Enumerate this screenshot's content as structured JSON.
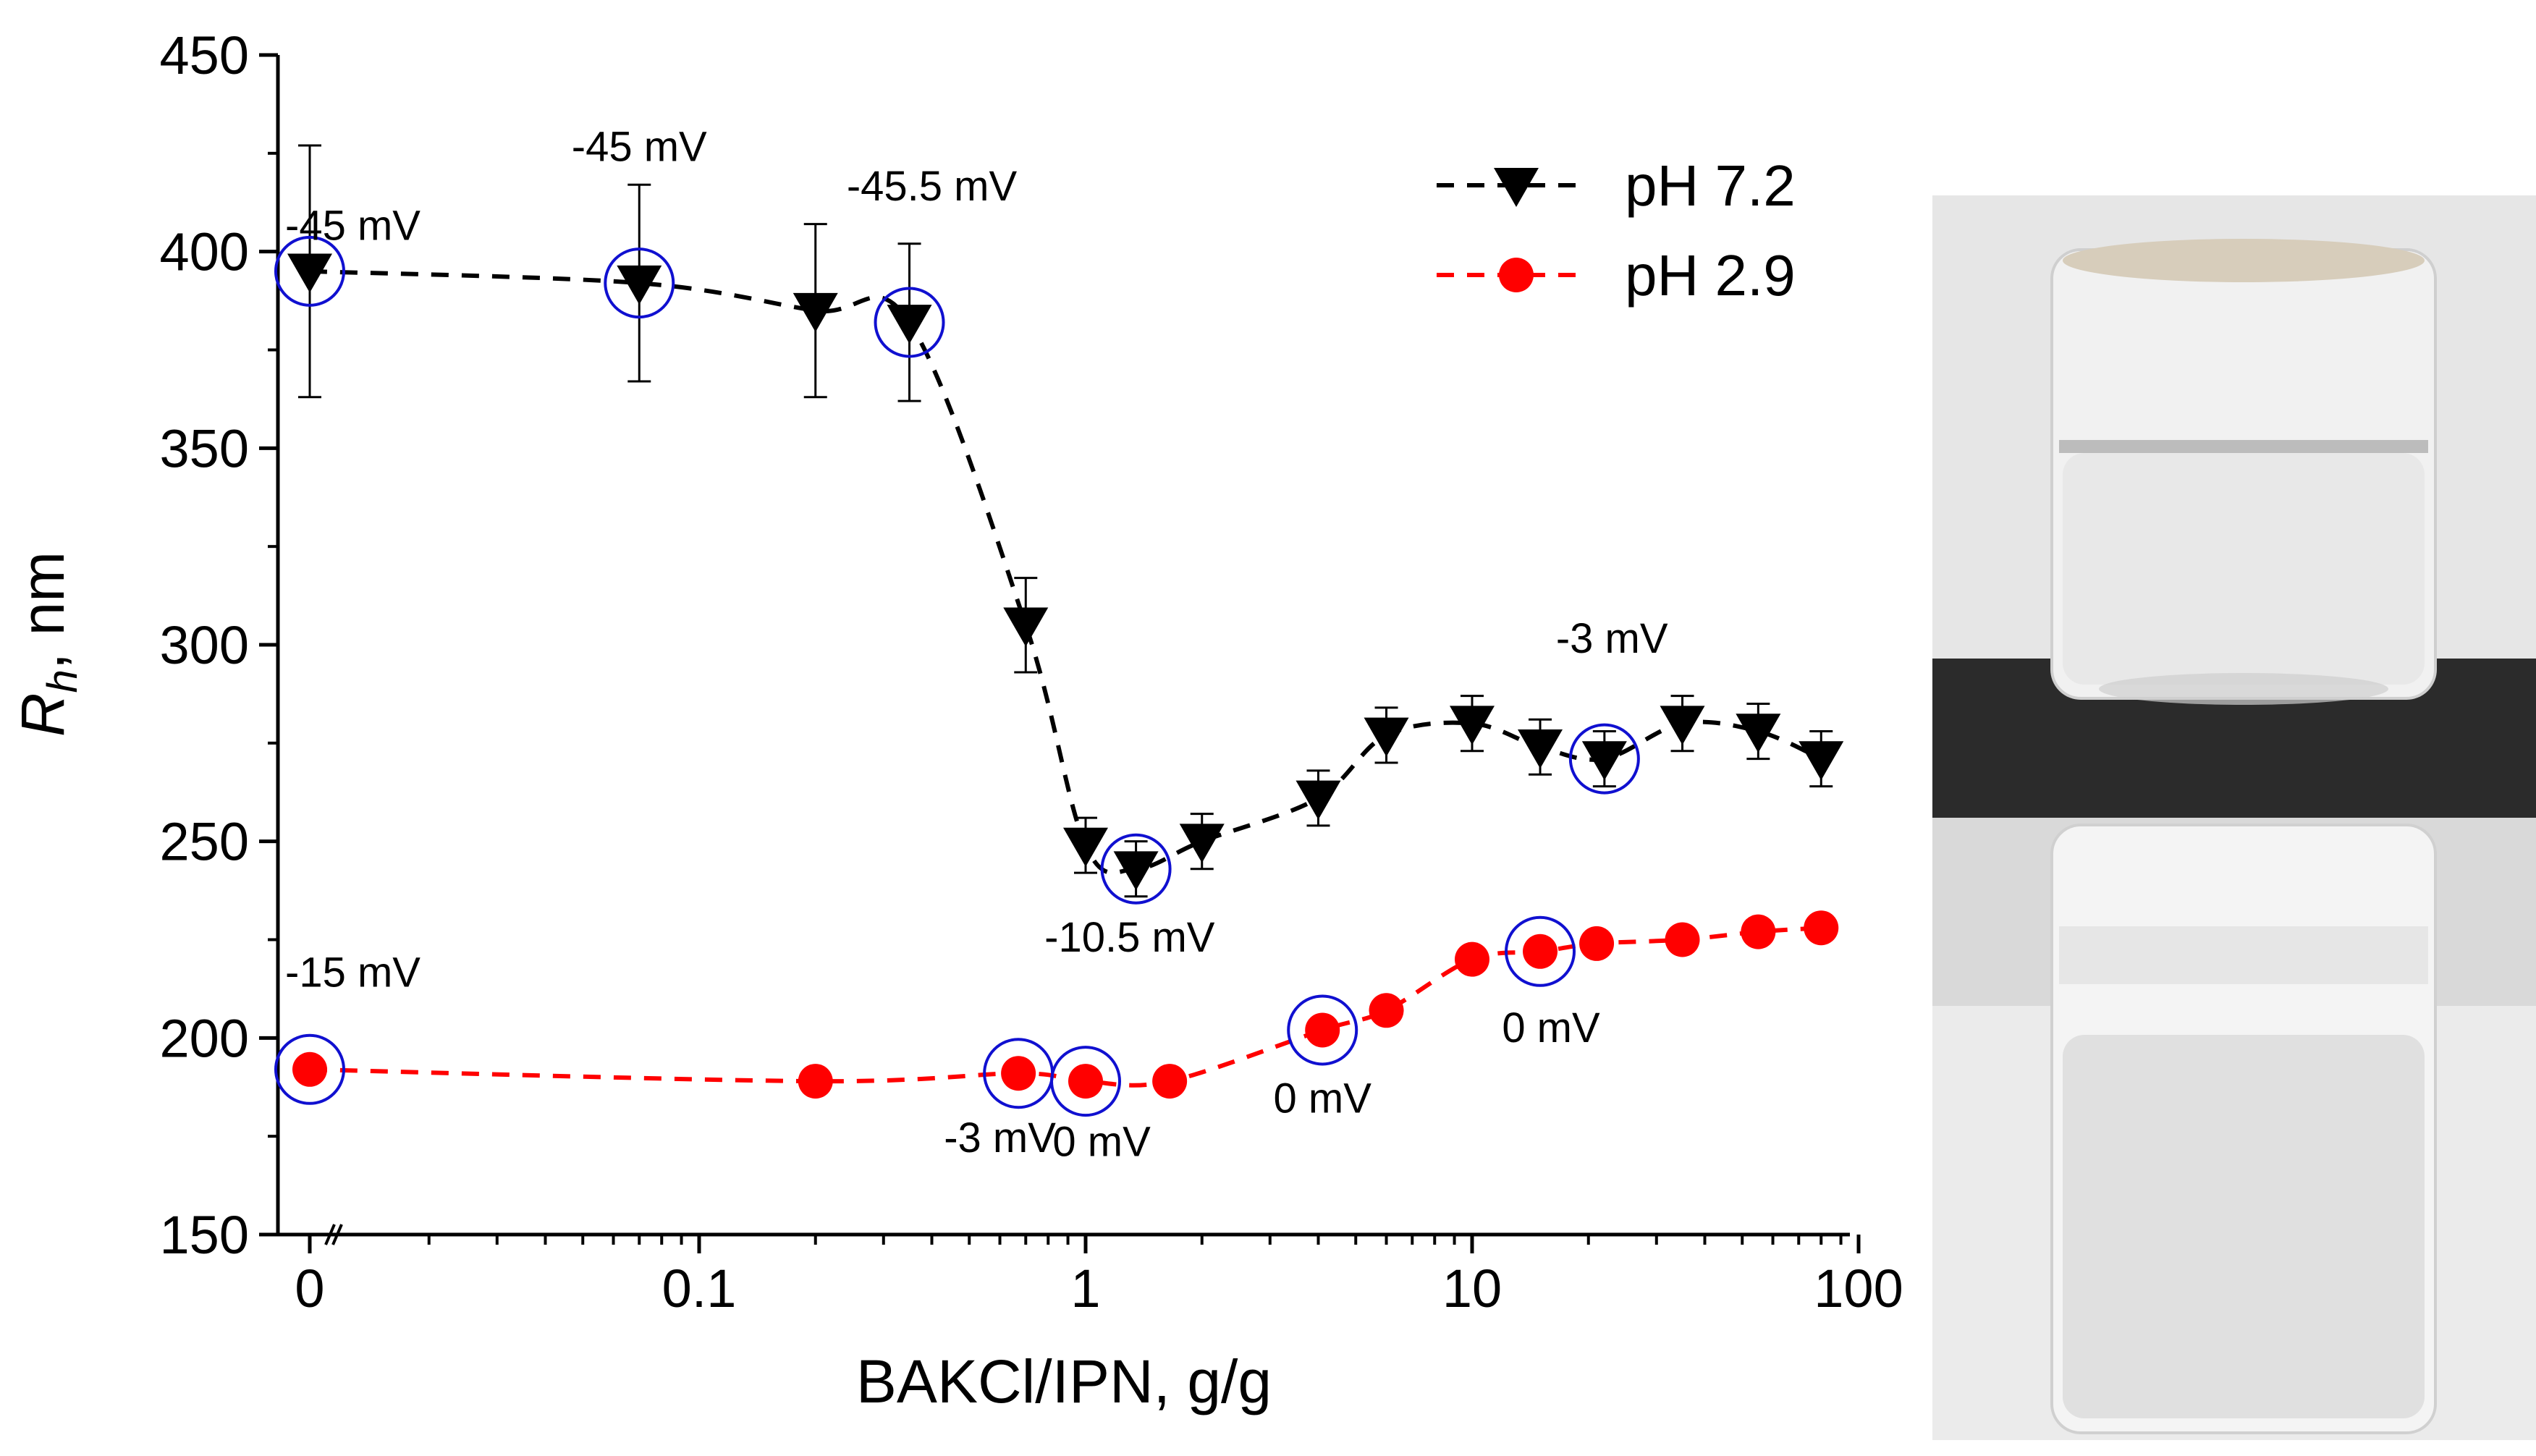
{
  "chart_data": {
    "type": "scatter",
    "xlabel": "BAKCl/IPN, g/g",
    "ylabel": "R",
    "ylabel_subscript": "h",
    "ylabel_unit": ", nm",
    "xscale": "log (first tick 0)",
    "xticks": [
      "0",
      "0.1",
      "1",
      "10",
      "100"
    ],
    "yticks": [
      "150",
      "200",
      "250",
      "300",
      "350",
      "400",
      "450"
    ],
    "ylim": [
      150,
      450
    ],
    "legend_position": "top-right",
    "series": [
      {
        "name": "pH 7.2",
        "color": "#000000",
        "marker": "triangle-down",
        "line": "dashed",
        "points": [
          {
            "x": 0,
            "y": 395,
            "err": 32,
            "circled": true
          },
          {
            "x": 0.07,
            "y": 392,
            "err": 25,
            "circled": true
          },
          {
            "x": 0.2,
            "y": 385,
            "err": 22,
            "circled": false
          },
          {
            "x": 0.35,
            "y": 382,
            "err": 20,
            "circled": true
          },
          {
            "x": 0.7,
            "y": 305,
            "err": 12,
            "circled": false
          },
          {
            "x": 1.0,
            "y": 249,
            "err": 7,
            "circled": false
          },
          {
            "x": 1.35,
            "y": 243,
            "err": 7,
            "circled": true
          },
          {
            "x": 2.0,
            "y": 250,
            "err": 7,
            "circled": false
          },
          {
            "x": 4.0,
            "y": 261,
            "err": 7,
            "circled": false
          },
          {
            "x": 6.0,
            "y": 277,
            "err": 7,
            "circled": false
          },
          {
            "x": 10,
            "y": 280,
            "err": 7,
            "circled": false
          },
          {
            "x": 15,
            "y": 274,
            "err": 7,
            "circled": false
          },
          {
            "x": 22,
            "y": 271,
            "err": 7,
            "circled": true
          },
          {
            "x": 35,
            "y": 280,
            "err": 7,
            "circled": false
          },
          {
            "x": 55,
            "y": 278,
            "err": 7,
            "circled": false
          },
          {
            "x": 80,
            "y": 271,
            "err": 7,
            "circled": false
          }
        ]
      },
      {
        "name": "pH 2.9",
        "color": "#ff0000",
        "marker": "circle",
        "line": "dashed",
        "points": [
          {
            "x": 0,
            "y": 192,
            "circled": true
          },
          {
            "x": 0.2,
            "y": 189,
            "circled": false
          },
          {
            "x": 0.67,
            "y": 191,
            "circled": true
          },
          {
            "x": 1.0,
            "y": 189,
            "circled": true
          },
          {
            "x": 1.65,
            "y": 189,
            "circled": false
          },
          {
            "x": 4.1,
            "y": 202,
            "circled": true
          },
          {
            "x": 6.0,
            "y": 207,
            "circled": false
          },
          {
            "x": 10,
            "y": 220,
            "circled": false
          },
          {
            "x": 15,
            "y": 222,
            "circled": true
          },
          {
            "x": 21,
            "y": 224,
            "circled": false
          },
          {
            "x": 35,
            "y": 225,
            "circled": false
          },
          {
            "x": 55,
            "y": 227,
            "circled": false
          },
          {
            "x": 80,
            "y": 228,
            "circled": false
          }
        ]
      }
    ],
    "annotations": [
      {
        "text": "-45 mV",
        "x": 0,
        "y": 403,
        "anchor": "start"
      },
      {
        "text": "-45 mV",
        "x": 0.07,
        "y": 423,
        "anchor": "middle"
      },
      {
        "text": "-45.5 mV",
        "x": 0.4,
        "y": 413,
        "anchor": "middle"
      },
      {
        "text": "-10.5 mV",
        "x": 1.3,
        "y": 222,
        "anchor": "middle"
      },
      {
        "text": "-3 mV",
        "x": 23,
        "y": 298,
        "anchor": "middle"
      },
      {
        "text": "-15 mV",
        "x": 0,
        "y": 213,
        "anchor": "start"
      },
      {
        "text": "-3 mV",
        "x": 0.6,
        "y": 171,
        "anchor": "middle"
      },
      {
        "text": "0 mV",
        "x": 1.1,
        "y": 170,
        "anchor": "middle"
      },
      {
        "text": "0 mV",
        "x": 4.1,
        "y": 181,
        "anchor": "middle"
      },
      {
        "text": "0 mV",
        "x": 16,
        "y": 199,
        "anchor": "middle"
      }
    ],
    "circle_color": "#1010d0"
  },
  "photos": {
    "top": {
      "background": "#e6e6e6",
      "table_color": "#2b2b2b",
      "liquid": "clear"
    },
    "bottom": {
      "background": "#e8e8e8",
      "liquid": "turbid"
    }
  }
}
